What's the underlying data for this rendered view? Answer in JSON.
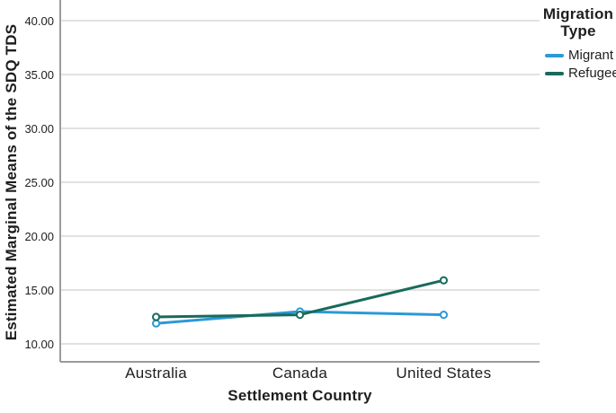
{
  "chart_data": {
    "type": "line",
    "title": "",
    "xlabel": "Settlement Country",
    "ylabel": "Estimated Marginal Means of the SDQ TDS",
    "categories": [
      "Australia",
      "Canada",
      "United States"
    ],
    "series": [
      {
        "name": "Migrant",
        "color": "#2C99D6",
        "values": [
          11.9,
          13.0,
          12.7
        ]
      },
      {
        "name": "Refugee",
        "color": "#186A5B",
        "values": [
          12.5,
          12.7,
          15.9
        ]
      }
    ],
    "y_ticks": [
      {
        "value": 10,
        "label": "10.00"
      },
      {
        "value": 15,
        "label": "15.00"
      },
      {
        "value": 20,
        "label": "20.00"
      },
      {
        "value": 25,
        "label": "25.00"
      },
      {
        "value": 30,
        "label": "30.00"
      },
      {
        "value": 35,
        "label": "35.00"
      },
      {
        "value": 40,
        "label": "40.00"
      }
    ],
    "ylim": [
      8.3,
      41.9
    ],
    "grid": "horizontal",
    "marker": "open-circle",
    "legend": {
      "title": "Migration Type",
      "position": "top-right"
    }
  },
  "colors": {
    "grid": "#D8D8D8",
    "axis": "#9B9B9B",
    "text": "#1E1E1E"
  }
}
